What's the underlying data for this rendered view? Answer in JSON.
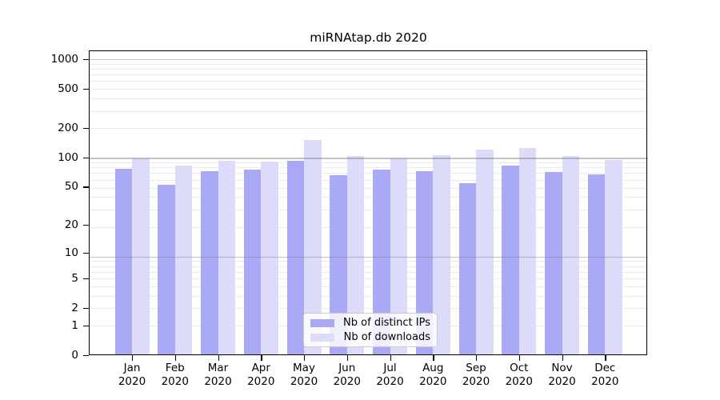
{
  "chart_data": {
    "type": "bar",
    "title": "miRNAtap.db 2020",
    "categories": [
      "Jan 2020",
      "Feb 2020",
      "Mar 2020",
      "Apr 2020",
      "May 2020",
      "Jun 2020",
      "Jul 2020",
      "Aug 2020",
      "Sep 2020",
      "Oct 2020",
      "Nov 2020",
      "Dec 2020"
    ],
    "series": [
      {
        "name": "Nb of distinct IPs",
        "color": "#a9a9f5",
        "values": [
          76,
          52,
          72,
          75,
          93,
          66,
          75,
          73,
          54,
          82,
          71,
          67
        ]
      },
      {
        "name": "Nb of downloads",
        "color": "#dcdcfa",
        "values": [
          97,
          82,
          93,
          90,
          152,
          103,
          97,
          106,
          120,
          126,
          104,
          95
        ]
      }
    ],
    "xlabel": "",
    "ylabel": "",
    "yscale": "log1p",
    "ylim": [
      0,
      1000
    ],
    "y_ticks": [
      1000,
      500,
      200,
      100,
      50,
      20,
      10,
      5,
      2,
      1,
      0
    ],
    "grid": "on",
    "legend_position": "lower-center",
    "colors": {
      "major_grid": "rgba(120,120,120,0.45)",
      "minor_grid": "rgba(120,120,120,0.14)",
      "spine": "#000000"
    }
  }
}
